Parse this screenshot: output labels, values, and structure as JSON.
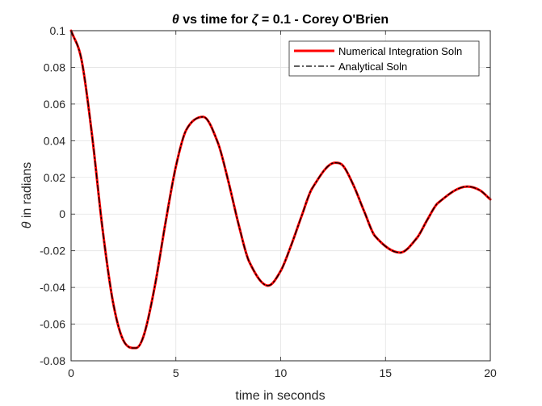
{
  "chart_data": {
    "type": "line",
    "title_prefix": "θ",
    "title_middle": " vs time for ",
    "title_symbol": "ζ",
    "title_suffix": " = 0.1 - Corey O'Brien",
    "xlabel": "time in seconds",
    "ylabel_symbol": "θ",
    "ylabel_suffix": " in radians",
    "xlim": [
      0,
      20
    ],
    "ylim": [
      -0.08,
      0.1
    ],
    "xticks": [
      0,
      5,
      10,
      15,
      20
    ],
    "xtick_labels": [
      "0",
      "5",
      "10",
      "15",
      "20"
    ],
    "yticks": [
      -0.08,
      -0.06,
      -0.04,
      -0.02,
      0,
      0.02,
      0.04,
      0.06,
      0.08,
      0.1
    ],
    "ytick_labels": [
      "-0.08",
      "-0.06",
      "-0.04",
      "-0.02",
      "0",
      "0.02",
      "0.04",
      "0.06",
      "0.08",
      "0.1"
    ],
    "grid": true,
    "legend_position": "top-right",
    "series": [
      {
        "name": "Numerical Integration Soln",
        "color": "#ff0000",
        "style": "solid",
        "x": [
          0,
          0.5,
          1.0,
          1.5,
          2.0,
          2.5,
          3.1,
          3.5,
          4.0,
          4.5,
          5.0,
          5.5,
          6.3,
          7.0,
          7.5,
          8.0,
          8.5,
          9.4,
          10.0,
          10.5,
          11.0,
          11.5,
          12.6,
          13.0,
          13.5,
          14.0,
          14.5,
          15.7,
          16.5,
          17.0,
          17.5,
          18.9,
          19.5,
          20.0
        ],
        "y": [
          0.1,
          0.084,
          0.043,
          -0.008,
          -0.048,
          -0.069,
          -0.073,
          -0.065,
          -0.039,
          -0.005,
          0.026,
          0.046,
          0.053,
          0.039,
          0.018,
          -0.006,
          -0.026,
          -0.039,
          -0.031,
          -0.017,
          -0.001,
          0.014,
          0.028,
          0.026,
          0.015,
          0.001,
          -0.012,
          -0.021,
          -0.013,
          -0.003,
          0.006,
          0.015,
          0.013,
          0.008
        ]
      },
      {
        "name": "Analytical Soln",
        "color": "#000000",
        "style": "dash-dot",
        "x": [
          0,
          0.5,
          1.0,
          1.5,
          2.0,
          2.5,
          3.1,
          3.5,
          4.0,
          4.5,
          5.0,
          5.5,
          6.3,
          7.0,
          7.5,
          8.0,
          8.5,
          9.4,
          10.0,
          10.5,
          11.0,
          11.5,
          12.6,
          13.0,
          13.5,
          14.0,
          14.5,
          15.7,
          16.5,
          17.0,
          17.5,
          18.9,
          19.5,
          20.0
        ],
        "y": [
          0.1,
          0.084,
          0.043,
          -0.008,
          -0.048,
          -0.069,
          -0.073,
          -0.065,
          -0.039,
          -0.005,
          0.026,
          0.046,
          0.053,
          0.039,
          0.018,
          -0.006,
          -0.026,
          -0.039,
          -0.031,
          -0.017,
          -0.001,
          0.014,
          0.028,
          0.026,
          0.015,
          0.001,
          -0.012,
          -0.021,
          -0.013,
          -0.003,
          0.006,
          0.015,
          0.013,
          0.008
        ]
      }
    ]
  }
}
